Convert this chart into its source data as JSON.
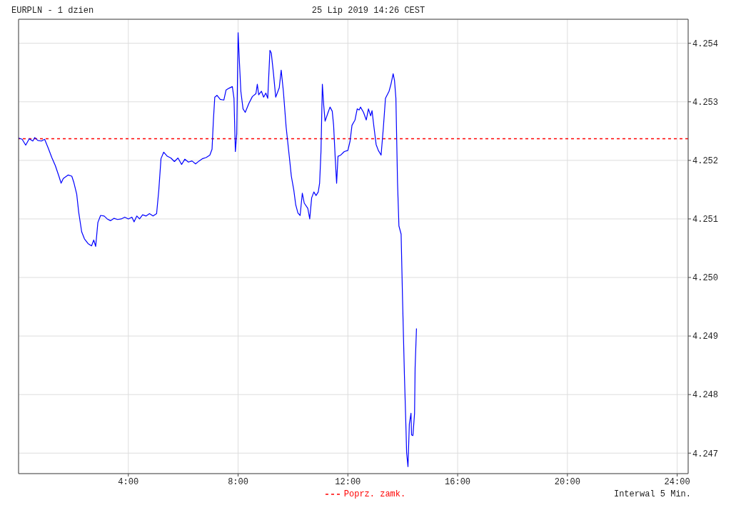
{
  "chart_data": {
    "type": "line",
    "title": "EURPLN - 1 dzien",
    "subtitle": "25 Lip 2019 14:26 CEST",
    "annotations": [
      "Interwal 5 Min."
    ],
    "x": [
      0.0,
      0.13,
      0.26,
      0.39,
      0.52,
      0.59,
      0.7,
      0.83,
      0.95,
      1.08,
      1.21,
      1.34,
      1.47,
      1.55,
      1.63,
      1.81,
      1.94,
      2.01,
      2.12,
      2.19,
      2.3,
      2.4,
      2.53,
      2.66,
      2.74,
      2.81,
      2.89,
      2.99,
      3.12,
      3.23,
      3.35,
      3.48,
      3.61,
      3.74,
      3.87,
      4.0,
      4.13,
      4.21,
      4.31,
      4.41,
      4.52,
      4.65,
      4.77,
      4.9,
      5.03,
      5.11,
      5.19,
      5.29,
      5.42,
      5.55,
      5.68,
      5.81,
      5.94,
      6.06,
      6.19,
      6.32,
      6.45,
      6.58,
      6.71,
      6.84,
      6.97,
      7.05,
      7.1,
      7.15,
      7.23,
      7.35,
      7.48,
      7.56,
      7.66,
      7.79,
      7.85,
      7.9,
      7.95,
      8.0,
      8.05,
      8.1,
      8.18,
      8.26,
      8.39,
      8.52,
      8.65,
      8.7,
      8.75,
      8.85,
      8.93,
      9.01,
      9.08,
      9.16,
      9.21,
      9.29,
      9.37,
      9.5,
      9.57,
      9.65,
      9.75,
      9.86,
      9.94,
      10.03,
      10.1,
      10.18,
      10.26,
      10.34,
      10.41,
      10.54,
      10.61,
      10.68,
      10.76,
      10.84,
      10.92,
      10.97,
      11.02,
      11.07,
      11.12,
      11.17,
      11.28,
      11.35,
      11.43,
      11.48,
      11.54,
      11.59,
      11.64,
      11.74,
      11.87,
      12.0,
      12.08,
      12.15,
      12.26,
      12.34,
      12.41,
      12.46,
      12.57,
      12.67,
      12.75,
      12.83,
      12.88,
      12.95,
      13.03,
      13.11,
      13.21,
      13.29,
      13.37,
      13.5,
      13.57,
      13.65,
      13.7,
      13.75,
      13.81,
      13.86,
      13.94,
      13.99,
      14.06,
      14.12,
      14.14,
      14.19,
      14.24,
      14.3,
      14.32,
      14.37,
      14.43,
      14.45,
      14.5
    ],
    "series": [
      {
        "color": "#0000ff",
        "values": [
          4.25238,
          4.25236,
          4.25226,
          4.25237,
          4.25233,
          4.25239,
          4.25234,
          4.25233,
          4.25236,
          4.25221,
          4.25205,
          4.25191,
          4.25173,
          4.25161,
          4.25169,
          4.25175,
          4.25173,
          4.25163,
          4.25142,
          4.25112,
          4.25078,
          4.25066,
          4.25058,
          4.25054,
          4.25064,
          4.25053,
          4.25094,
          4.25106,
          4.25105,
          4.251,
          4.25097,
          4.25101,
          4.25099,
          4.251,
          4.25103,
          4.251,
          4.25103,
          4.25095,
          4.25105,
          4.251,
          4.25107,
          4.25105,
          4.25109,
          4.25105,
          4.25109,
          4.25149,
          4.25203,
          4.25214,
          4.25207,
          4.25204,
          4.25198,
          4.25204,
          4.25193,
          4.25202,
          4.25197,
          4.25199,
          4.25194,
          4.25199,
          4.25203,
          4.25205,
          4.25209,
          4.25219,
          4.25269,
          4.25308,
          4.25311,
          4.25304,
          4.25303,
          4.2532,
          4.25323,
          4.25326,
          4.25306,
          4.25215,
          4.25245,
          4.25418,
          4.25366,
          4.25318,
          4.25288,
          4.25282,
          4.25297,
          4.25309,
          4.25314,
          4.2533,
          4.25312,
          4.25318,
          4.25308,
          4.25315,
          4.25306,
          4.25388,
          4.25383,
          4.25348,
          4.25308,
          4.25324,
          4.25354,
          4.25318,
          4.25257,
          4.25209,
          4.25173,
          4.25149,
          4.25124,
          4.2511,
          4.25106,
          4.25144,
          4.25127,
          4.25118,
          4.251,
          4.25136,
          4.25146,
          4.2514,
          4.25146,
          4.25161,
          4.25215,
          4.2533,
          4.25294,
          4.25267,
          4.25282,
          4.25291,
          4.25284,
          4.2526,
          4.25203,
          4.25161,
          4.25207,
          4.25209,
          4.25215,
          4.25217,
          4.25233,
          4.2526,
          4.25269,
          4.25288,
          4.25286,
          4.25291,
          4.25282,
          4.25269,
          4.25288,
          4.25276,
          4.25285,
          4.25257,
          4.25227,
          4.25217,
          4.25209,
          4.25254,
          4.25306,
          4.25318,
          4.2533,
          4.25348,
          4.25336,
          4.25306,
          4.25161,
          4.25088,
          4.25074,
          4.24967,
          4.24834,
          4.24738,
          4.24701,
          4.24677,
          4.2475,
          4.24768,
          4.24731,
          4.2473,
          4.24768,
          4.24846,
          4.24913
        ]
      }
    ],
    "xlim": [
      0,
      24.4
    ],
    "xticks": [
      {
        "value": 4,
        "label": "4:00"
      },
      {
        "value": 8,
        "label": "8:00"
      },
      {
        "value": 12,
        "label": "12:00"
      },
      {
        "value": 16,
        "label": "16:00"
      },
      {
        "value": 20,
        "label": "20:00"
      },
      {
        "value": 24,
        "label": "24:00"
      }
    ],
    "ylim": [
      4.24665,
      4.25441
    ],
    "yticks": [
      4.247,
      4.248,
      4.249,
      {
        "value": 4.25,
        "label": "4.250"
      },
      4.251,
      4.252,
      4.253,
      4.254
    ],
    "ref_lines": [
      {
        "axis": "y",
        "value": 4.25237,
        "label": "Poprz. zamk.",
        "color": "#ff0000",
        "line_style": "dashed"
      }
    ],
    "grid": true,
    "legend": "bottom",
    "marker": "none",
    "line_style": "solid"
  }
}
